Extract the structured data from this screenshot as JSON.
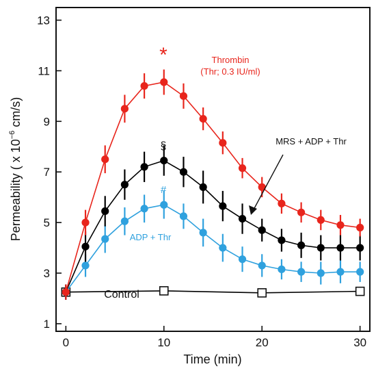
{
  "chart_data": {
    "type": "line",
    "title": "",
    "xlabel": "Time (min)",
    "ylabel_prefix": "Permeability ( x 10",
    "ylabel_exp": "−6",
    "ylabel_suffix": " cm/s)",
    "xlim": [
      -1,
      31
    ],
    "ylim": [
      0.7,
      13.5
    ],
    "xticks": [
      0,
      10,
      20,
      30
    ],
    "yticks": [
      1,
      3,
      5,
      7,
      9,
      11,
      13
    ],
    "xtick_labels": [
      "0",
      "10",
      "20",
      "30"
    ],
    "ytick_labels": [
      "1",
      "3",
      "5",
      "7",
      "9",
      "11",
      "13"
    ],
    "legend": "none",
    "grid": false,
    "series": [
      {
        "key": "thrombin",
        "color": "#e8251c",
        "marker": "filled-circle",
        "x": [
          0,
          2,
          4,
          6,
          8,
          10,
          12,
          14,
          16,
          18,
          20,
          22,
          24,
          26,
          28,
          30
        ],
        "y": [
          2.25,
          5.0,
          7.5,
          9.5,
          10.4,
          10.55,
          10.0,
          9.1,
          8.15,
          7.15,
          6.4,
          5.75,
          5.4,
          5.1,
          4.9,
          4.8
        ],
        "err": [
          0.3,
          0.5,
          0.55,
          0.55,
          0.5,
          0.5,
          0.5,
          0.45,
          0.45,
          0.4,
          0.4,
          0.4,
          0.4,
          0.4,
          0.4,
          0.35
        ]
      },
      {
        "key": "mrs",
        "color": "#000000",
        "marker": "filled-circle",
        "x": [
          0,
          2,
          4,
          6,
          8,
          10,
          12,
          14,
          16,
          18,
          20,
          22,
          24,
          26,
          28,
          30
        ],
        "y": [
          2.25,
          4.05,
          5.45,
          6.5,
          7.2,
          7.45,
          7.0,
          6.4,
          5.65,
          5.15,
          4.7,
          4.3,
          4.1,
          4.0,
          4.0,
          4.0
        ],
        "err": [
          0.3,
          0.6,
          0.6,
          0.6,
          0.6,
          0.6,
          0.6,
          0.65,
          0.6,
          0.6,
          0.45,
          0.45,
          0.5,
          0.5,
          0.5,
          0.5
        ]
      },
      {
        "key": "adp",
        "color": "#2fa1de",
        "marker": "filled-circle",
        "x": [
          0,
          2,
          4,
          6,
          8,
          10,
          12,
          14,
          16,
          18,
          20,
          22,
          24,
          26,
          28,
          30
        ],
        "y": [
          2.25,
          3.3,
          4.35,
          5.05,
          5.55,
          5.7,
          5.25,
          4.6,
          4.0,
          3.55,
          3.3,
          3.15,
          3.05,
          3.0,
          3.05,
          3.05
        ],
        "err": [
          0.3,
          0.45,
          0.55,
          0.55,
          0.55,
          0.55,
          0.5,
          0.55,
          0.55,
          0.5,
          0.45,
          0.4,
          0.4,
          0.45,
          0.45,
          0.4
        ]
      },
      {
        "key": "control",
        "color": "#000000",
        "marker": "open-square",
        "x": [
          0,
          10,
          20,
          30
        ],
        "y": [
          2.25,
          2.3,
          2.22,
          2.28
        ],
        "err": [
          0.3,
          0.15,
          0.15,
          0.15
        ]
      }
    ],
    "annotations": {
      "thrombin_line1": "Thrombin",
      "thrombin_line2": "(Thr; 0.3 IU/ml)",
      "mrs": "MRS + ADP + Thr",
      "adp": "ADP + Thr",
      "control": "Control",
      "star": "*",
      "section": "§",
      "hash": "#"
    }
  }
}
